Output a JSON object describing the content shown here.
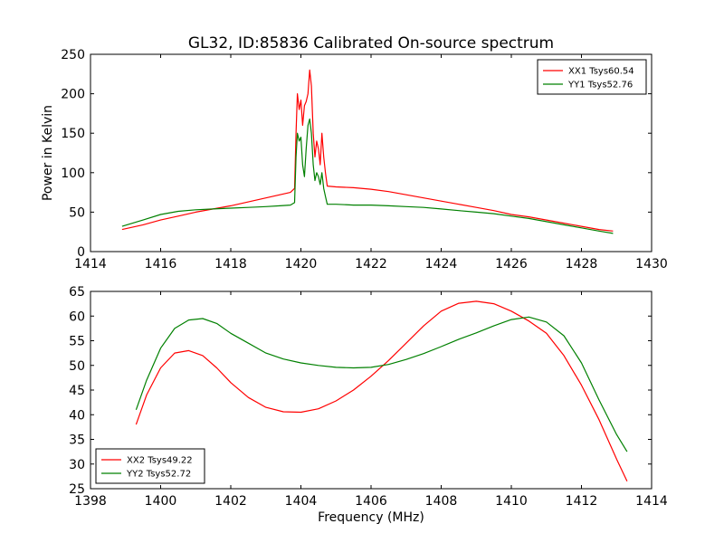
{
  "figure_title": "GL32, ID:85836 Calibrated On-source spectrum",
  "chart_data": [
    {
      "type": "line",
      "title": "GL32, ID:85836 Calibrated On-source spectrum",
      "xlabel": "",
      "ylabel": "Power in Kelvin",
      "xlim": [
        1414,
        1430
      ],
      "ylim": [
        0,
        250
      ],
      "xticks": [
        1414,
        1416,
        1418,
        1420,
        1422,
        1424,
        1426,
        1428,
        1430
      ],
      "yticks": [
        0,
        50,
        100,
        150,
        200,
        250
      ],
      "grid": false,
      "legend_position": "top-right",
      "series": [
        {
          "name": "XX1 Tsys60.54",
          "color": "#ff0000",
          "x": [
            1414.9,
            1415.5,
            1416.0,
            1416.5,
            1417.0,
            1417.5,
            1418.0,
            1418.5,
            1419.0,
            1419.4,
            1419.7,
            1419.82,
            1419.86,
            1419.9,
            1419.95,
            1420.0,
            1420.05,
            1420.1,
            1420.15,
            1420.2,
            1420.25,
            1420.3,
            1420.35,
            1420.4,
            1420.45,
            1420.5,
            1420.55,
            1420.6,
            1420.65,
            1420.7,
            1420.75,
            1421.0,
            1421.5,
            1422.0,
            1422.5,
            1423.0,
            1423.5,
            1424.0,
            1424.5,
            1425.0,
            1425.5,
            1426.0,
            1426.5,
            1427.0,
            1427.5,
            1428.0,
            1428.5,
            1428.9
          ],
          "y": [
            28,
            34,
            40,
            45,
            50,
            54,
            58,
            63,
            68,
            72,
            75,
            80,
            150,
            200,
            180,
            192,
            160,
            185,
            190,
            200,
            230,
            210,
            150,
            120,
            140,
            130,
            110,
            150,
            120,
            100,
            83,
            82,
            81,
            79,
            76,
            72,
            68,
            64,
            60,
            56,
            52,
            47,
            44,
            40,
            36,
            32,
            28,
            26
          ]
        },
        {
          "name": "YY1 Tsys52.76",
          "color": "#008000",
          "x": [
            1414.9,
            1415.5,
            1416.0,
            1416.5,
            1417.0,
            1417.5,
            1418.0,
            1418.5,
            1419.0,
            1419.4,
            1419.7,
            1419.82,
            1419.86,
            1419.9,
            1419.95,
            1420.0,
            1420.05,
            1420.1,
            1420.15,
            1420.2,
            1420.25,
            1420.3,
            1420.35,
            1420.4,
            1420.45,
            1420.5,
            1420.55,
            1420.6,
            1420.65,
            1420.7,
            1420.75,
            1421.0,
            1421.5,
            1422.0,
            1422.5,
            1423.0,
            1423.5,
            1424.0,
            1424.5,
            1425.0,
            1425.5,
            1426.0,
            1426.5,
            1427.0,
            1427.5,
            1428.0,
            1428.5,
            1428.9
          ],
          "y": [
            32,
            40,
            47,
            51,
            53,
            54,
            55,
            56,
            57,
            58,
            59,
            62,
            120,
            150,
            140,
            145,
            110,
            95,
            130,
            160,
            168,
            150,
            110,
            90,
            100,
            95,
            85,
            100,
            80,
            70,
            60,
            60,
            59,
            59,
            58,
            57,
            56,
            54,
            52,
            50,
            48,
            45,
            42,
            38,
            34,
            30,
            26,
            23
          ]
        }
      ]
    },
    {
      "type": "line",
      "title": "",
      "xlabel": "Frequency (MHz)",
      "ylabel": "",
      "xlim": [
        1398,
        1414
      ],
      "ylim": [
        25,
        65
      ],
      "xticks": [
        1398,
        1400,
        1402,
        1404,
        1406,
        1408,
        1410,
        1412,
        1414
      ],
      "yticks": [
        25,
        30,
        35,
        40,
        45,
        50,
        55,
        60,
        65
      ],
      "grid": false,
      "legend_position": "bottom-left",
      "series": [
        {
          "name": "XX2 Tsys49.22",
          "color": "#ff0000",
          "x": [
            1399.3,
            1399.6,
            1400.0,
            1400.4,
            1400.8,
            1401.2,
            1401.6,
            1402.0,
            1402.5,
            1403.0,
            1403.5,
            1404.0,
            1404.5,
            1405.0,
            1405.5,
            1406.0,
            1406.5,
            1407.0,
            1407.5,
            1408.0,
            1408.5,
            1409.0,
            1409.5,
            1410.0,
            1410.5,
            1411.0,
            1411.5,
            1412.0,
            1412.5,
            1413.0,
            1413.3
          ],
          "y": [
            38,
            44,
            49.5,
            52.5,
            53,
            52,
            49.5,
            46.5,
            43.5,
            41.5,
            40.6,
            40.5,
            41.2,
            42.8,
            45,
            47.8,
            51,
            54.5,
            58,
            61,
            62.6,
            63,
            62.5,
            61,
            59,
            56.5,
            52,
            46,
            39,
            31,
            26.5
          ]
        },
        {
          "name": "YY2 Tsys52.72",
          "color": "#008000",
          "x": [
            1399.3,
            1399.6,
            1400.0,
            1400.4,
            1400.8,
            1401.2,
            1401.6,
            1402.0,
            1402.5,
            1403.0,
            1403.5,
            1404.0,
            1404.5,
            1405.0,
            1405.5,
            1406.0,
            1406.5,
            1407.0,
            1407.5,
            1408.0,
            1408.5,
            1409.0,
            1409.5,
            1410.0,
            1410.5,
            1411.0,
            1411.5,
            1412.0,
            1412.5,
            1413.0,
            1413.3
          ],
          "y": [
            41,
            47,
            53.5,
            57.5,
            59.2,
            59.5,
            58.5,
            56.5,
            54.5,
            52.5,
            51.3,
            50.5,
            50,
            49.6,
            49.5,
            49.6,
            50.2,
            51.2,
            52.4,
            53.8,
            55.3,
            56.6,
            58,
            59.3,
            59.8,
            58.8,
            56,
            50.5,
            43,
            36,
            32.5
          ]
        }
      ]
    }
  ]
}
